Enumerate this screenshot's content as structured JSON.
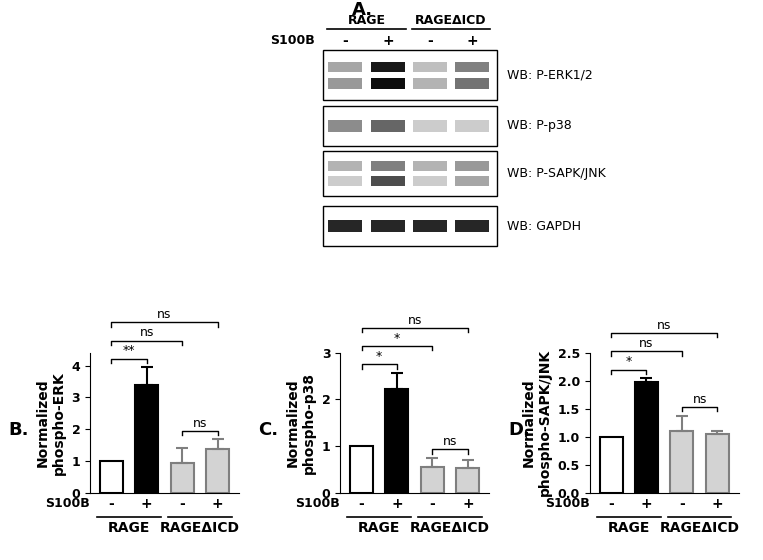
{
  "panel_a": {
    "panel_label": "A.",
    "treatment": "S100B",
    "lanes": [
      "-",
      "+",
      "-",
      "+"
    ],
    "groups": [
      {
        "label": "RAGE",
        "lanes": [
          0,
          1
        ]
      },
      {
        "label": "RAGEΔICD",
        "lanes": [
          2,
          3
        ]
      }
    ],
    "blots": [
      {
        "label": "WB: P-ERK1/2",
        "bands": [
          [
            0.35,
            0.9,
            0.25,
            0.5
          ],
          [
            0.4,
            0.95,
            0.3,
            0.55
          ]
        ]
      },
      {
        "label": "WB: P-p38",
        "bands": [
          [
            0.45,
            0.6,
            0.2,
            0.2
          ]
        ]
      },
      {
        "label": "WB: P-SAPK/JNK",
        "bands": [
          [
            0.3,
            0.5,
            0.3,
            0.4
          ],
          [
            0.2,
            0.7,
            0.2,
            0.35
          ]
        ]
      },
      {
        "label": "WB: GAPDH",
        "bands": [
          [
            0.85,
            0.85,
            0.85,
            0.85
          ]
        ]
      }
    ]
  },
  "chart_data": [
    {
      "type": "bar",
      "panel_label": "B.",
      "ylabel": "Normalized\nphospho-ERK",
      "treatment": "S100B",
      "categories": [
        "-",
        "+",
        "-",
        "+"
      ],
      "values": [
        1,
        3.4,
        0.95,
        1.38
      ],
      "errors": [
        null,
        0.55,
        0.45,
        0.3
      ],
      "colors": [
        "#ffffff",
        "#000000",
        "#d3d3d3",
        "#d3d3d3"
      ],
      "ylim": [
        0,
        4.4
      ],
      "yticks": [
        0,
        1,
        2,
        3,
        4
      ],
      "groups": [
        {
          "label": "RAGE",
          "members": [
            0,
            1
          ]
        },
        {
          "label": "RAGEΔICD",
          "members": [
            2,
            3
          ]
        }
      ],
      "comparisons": [
        {
          "pair": [
            0,
            1
          ],
          "label": "**"
        },
        {
          "pair": [
            0,
            2
          ],
          "label": "ns"
        },
        {
          "pair": [
            0,
            3
          ],
          "label": "ns"
        },
        {
          "pair": [
            2,
            3
          ],
          "label": "ns"
        }
      ]
    },
    {
      "type": "bar",
      "panel_label": "C.",
      "ylabel": "Normalized\nphospho-p38",
      "treatment": "S100B",
      "categories": [
        "-",
        "+",
        "-",
        "+"
      ],
      "values": [
        1,
        2.22,
        0.55,
        0.53
      ],
      "errors": [
        null,
        0.35,
        0.2,
        0.17
      ],
      "colors": [
        "#ffffff",
        "#000000",
        "#d3d3d3",
        "#d3d3d3"
      ],
      "ylim": [
        0,
        3
      ],
      "yticks": [
        0,
        1,
        2,
        3
      ],
      "groups": [
        {
          "label": "RAGE",
          "members": [
            0,
            1
          ]
        },
        {
          "label": "RAGEΔICD",
          "members": [
            2,
            3
          ]
        }
      ],
      "comparisons": [
        {
          "pair": [
            0,
            1
          ],
          "label": "*"
        },
        {
          "pair": [
            0,
            2
          ],
          "label": "*"
        },
        {
          "pair": [
            0,
            3
          ],
          "label": "ns"
        },
        {
          "pair": [
            2,
            3
          ],
          "label": "ns"
        }
      ]
    },
    {
      "type": "bar",
      "panel_label": "D.",
      "ylabel": "Normalized\nphospho-SAPK/JNK",
      "treatment": "S100B",
      "categories": [
        "-",
        "+",
        "-",
        "+"
      ],
      "values": [
        1,
        1.98,
        1.1,
        1.05
      ],
      "errors": [
        null,
        0.07,
        0.28,
        0.05
      ],
      "colors": [
        "#ffffff",
        "#000000",
        "#d3d3d3",
        "#d3d3d3"
      ],
      "ylim": [
        0,
        2.5
      ],
      "yticks": [
        {
          "value": 0,
          "label": "0.0"
        },
        {
          "value": 0.5,
          "label": "0.5"
        },
        {
          "value": 1,
          "label": "1.0"
        },
        {
          "value": 1.5,
          "label": "1.5"
        },
        {
          "value": 2,
          "label": "2.0"
        },
        {
          "value": 2.5,
          "label": "2.5"
        }
      ],
      "groups": [
        {
          "label": "RAGE",
          "members": [
            0,
            1
          ]
        },
        {
          "label": "RAGEΔICD",
          "members": [
            2,
            3
          ]
        }
      ],
      "comparisons": [
        {
          "pair": [
            0,
            1
          ],
          "label": "*"
        },
        {
          "pair": [
            0,
            2
          ],
          "label": "ns"
        },
        {
          "pair": [
            0,
            3
          ],
          "label": "ns"
        },
        {
          "pair": [
            2,
            3
          ],
          "label": "ns"
        }
      ]
    }
  ]
}
